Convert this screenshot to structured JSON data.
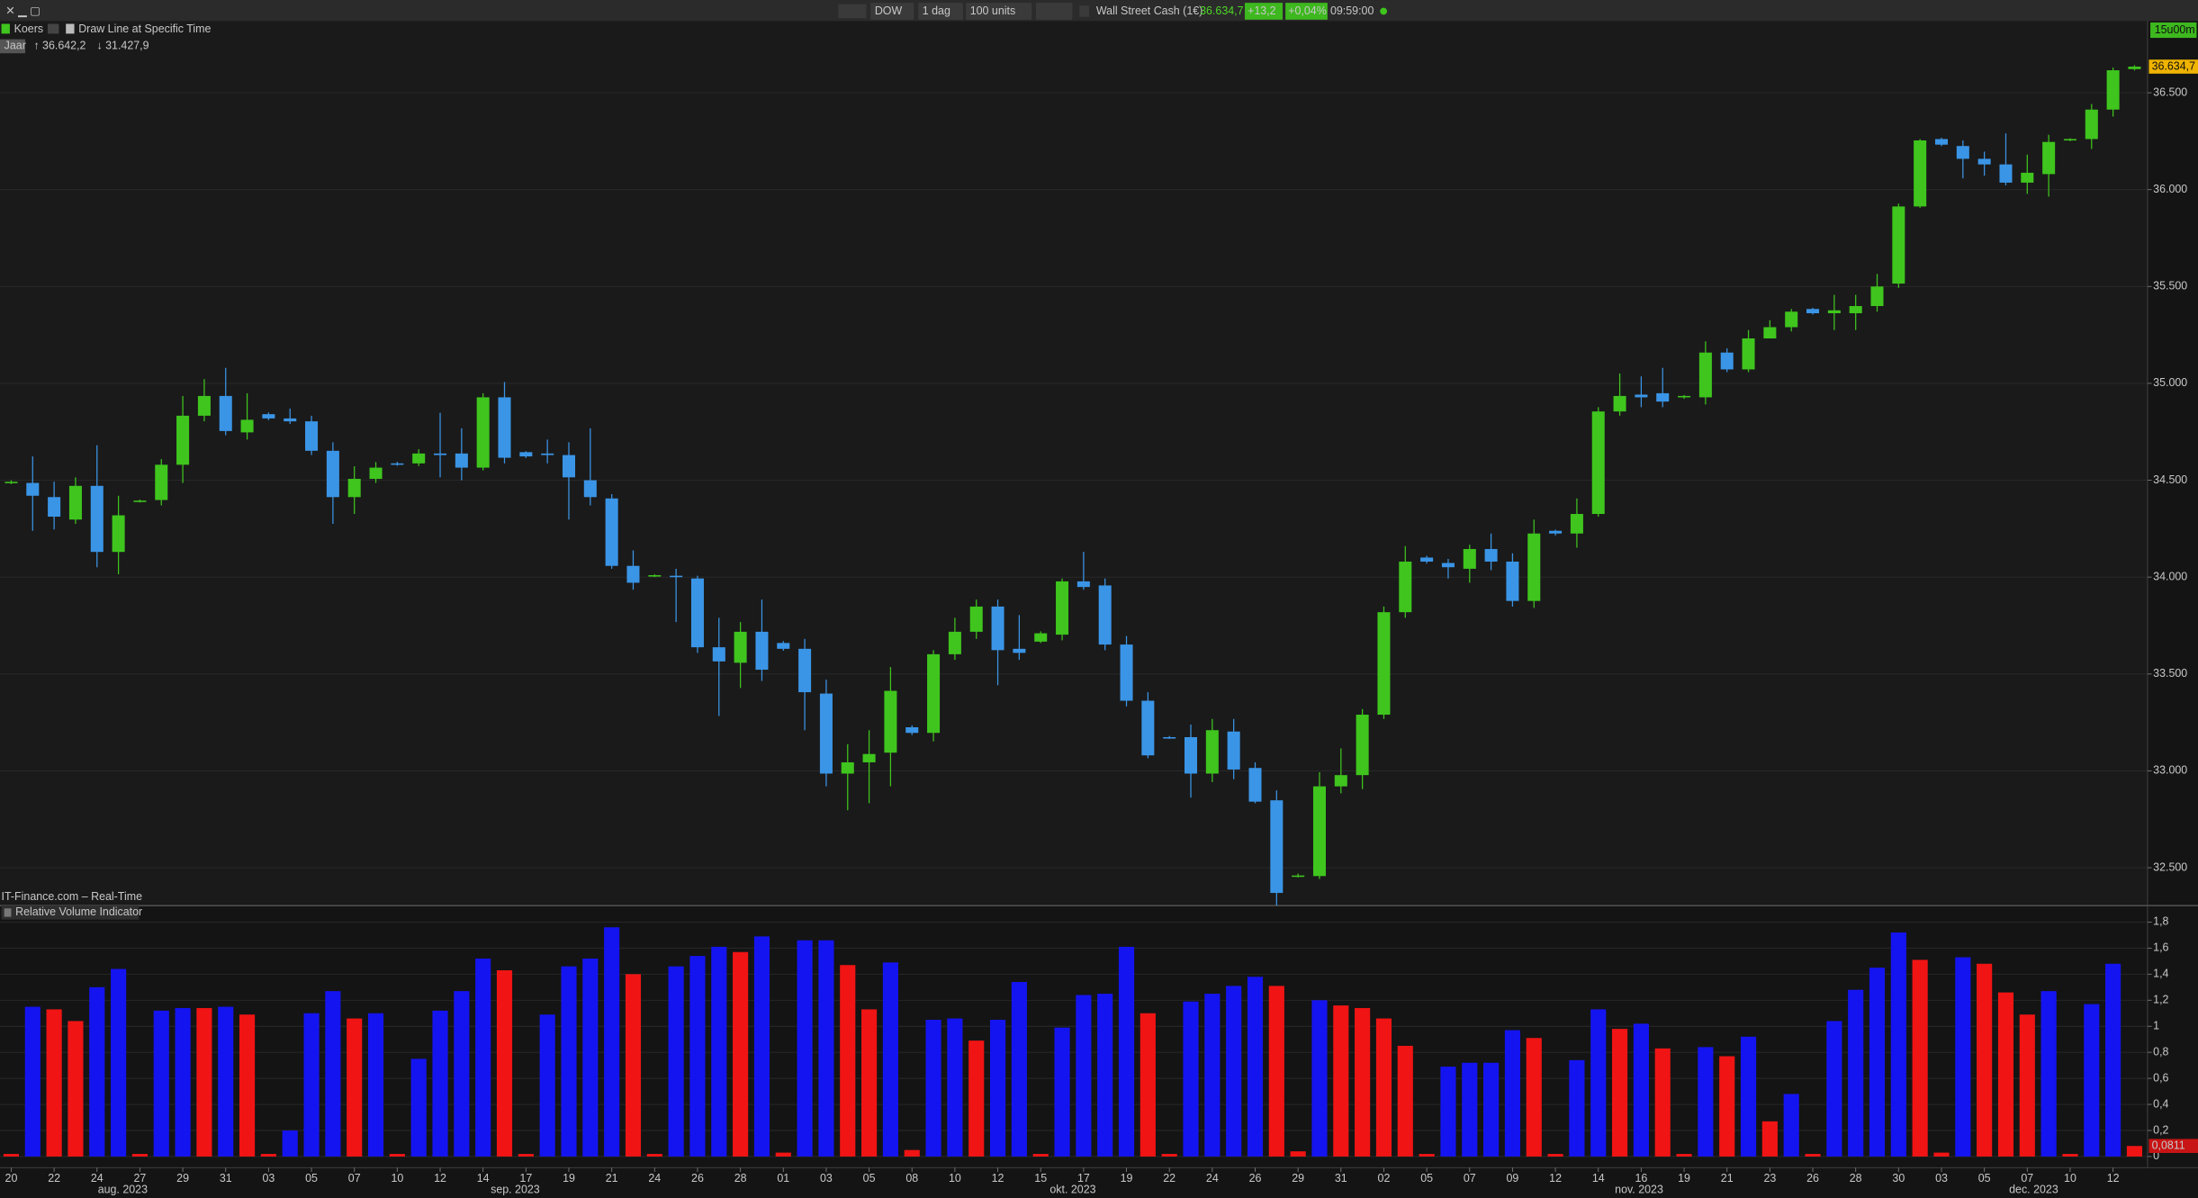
{
  "toolbar": {
    "symbol": "DOW",
    "period": "1 dag",
    "size": "100 units",
    "instrument": "Wall Street Cash (1€)",
    "price": "36.634,7",
    "change": "+13,2",
    "change_pct": "+0,04%",
    "time": "09:59:00",
    "timeframe": "15u00m"
  },
  "chart_data": [
    {
      "type": "candlestick",
      "legend": [
        "Koers",
        "Draw Line at Specific Time"
      ],
      "range_label": "Jaar",
      "high_label": "↑ 36.642,2",
      "low_label": "↓ 31.427,9",
      "source": "IT-Finance.com – Real-Time",
      "up_color": "#3fc51e",
      "down_color": "#3b95e6",
      "open": [
        34490,
        34486,
        34413,
        34297,
        34471,
        34130,
        34391,
        34398,
        34580,
        34833,
        34935,
        34747,
        34841,
        34819,
        34804,
        34652,
        34413,
        34507,
        34587,
        34587,
        34638,
        34638,
        34565,
        34928,
        34645,
        34638,
        34630,
        34500,
        34406,
        34058,
        34007,
        34007,
        33993,
        33638,
        33558,
        33718,
        33660,
        33630,
        33399,
        32986,
        33044,
        33094,
        33225,
        33196,
        33602,
        33718,
        33848,
        33630,
        33667,
        33703,
        33978,
        33957,
        33652,
        33362,
        33174,
        33174,
        32986,
        33203,
        33015,
        32848,
        32457,
        32457,
        32920,
        32978,
        33290,
        33819,
        34101,
        34073,
        34043,
        34145,
        34080,
        33877,
        34239,
        34225,
        34326,
        34855,
        34942,
        34949,
        34928,
        34928,
        35159,
        35072,
        35232,
        35290,
        35384,
        35362,
        35362,
        35399,
        35515,
        35913,
        36261,
        36225,
        36159,
        36130,
        36036,
        36080,
        36254,
        36261,
        36413,
        36622
      ],
      "high": [
        34500,
        34623,
        34493,
        34515,
        34681,
        34420,
        34400,
        34609,
        34935,
        35022,
        35080,
        34949,
        34850,
        34870,
        34833,
        34696,
        34572,
        34594,
        34595,
        34660,
        34848,
        34768,
        34949,
        35007,
        34650,
        34710,
        34696,
        34768,
        34428,
        34138,
        34015,
        34043,
        34007,
        33790,
        33768,
        33884,
        33670,
        33681,
        33471,
        33138,
        33210,
        33536,
        33235,
        33623,
        33790,
        33884,
        33884,
        33804,
        33720,
        33993,
        34131,
        33993,
        33696,
        33406,
        33180,
        33239,
        33268,
        33268,
        33044,
        32899,
        32470,
        32993,
        33116,
        33319,
        33848,
        34160,
        34110,
        34094,
        34167,
        34225,
        34123,
        34297,
        34245,
        34406,
        34877,
        35051,
        35036,
        35080,
        34940,
        35217,
        35181,
        35275,
        35326,
        35384,
        35390,
        35457,
        35457,
        35565,
        35928,
        36261,
        36268,
        36254,
        36196,
        36290,
        36181,
        36283,
        36265,
        36442,
        36630,
        36642.2
      ],
      "low": [
        34480,
        34239,
        34246,
        34275,
        34051,
        34015,
        34385,
        34370,
        34486,
        34804,
        34732,
        34710,
        34810,
        34790,
        34630,
        34275,
        34326,
        34486,
        34575,
        34573,
        34515,
        34500,
        34551,
        34587,
        34615,
        34587,
        34297,
        34370,
        34043,
        33935,
        34000,
        33768,
        33609,
        33283,
        33428,
        33464,
        33620,
        33210,
        32920,
        32797,
        32833,
        32920,
        33185,
        33152,
        33573,
        33681,
        33442,
        33573,
        33660,
        33674,
        33935,
        33623,
        33333,
        33065,
        33165,
        32862,
        32942,
        32957,
        32833,
        32305,
        32450,
        32442,
        32884,
        32906,
        33268,
        33790,
        34070,
        33993,
        33971,
        34036,
        33848,
        33841,
        34215,
        34152,
        34312,
        34833,
        34877,
        34877,
        34920,
        34891,
        35058,
        35058,
        35232,
        35268,
        35355,
        35275,
        35275,
        35370,
        35493,
        35906,
        36225,
        36058,
        36072,
        36022,
        35978,
        35964,
        36250,
        36210,
        36377,
        36615
      ],
      "close": [
        34492,
        34420,
        34312,
        34471,
        34130,
        34319,
        34395,
        34580,
        34833,
        34935,
        34754,
        34812,
        34819,
        34804,
        34652,
        34413,
        34507,
        34565,
        34580,
        34638,
        34630,
        34565,
        34928,
        34616,
        34623,
        34630,
        34515,
        34413,
        34058,
        33971,
        34010,
        34000,
        33638,
        33565,
        33718,
        33522,
        33630,
        33406,
        32986,
        33044,
        33087,
        33413,
        33196,
        33602,
        33718,
        33848,
        33623,
        33609,
        33710,
        33978,
        33949,
        33652,
        33362,
        33080,
        33170,
        32986,
        33210,
        33007,
        32841,
        32370,
        32460,
        32920,
        32978,
        33290,
        33819,
        34080,
        34080,
        34051,
        34145,
        34080,
        33877,
        34225,
        34225,
        34326,
        34855,
        34935,
        34928,
        34906,
        34935,
        35159,
        35072,
        35232,
        35290,
        35370,
        35362,
        35377,
        35399,
        35500,
        35913,
        36254,
        36232,
        36159,
        36130,
        36036,
        36087,
        36246,
        36261,
        36413,
        36616,
        36634.7
      ],
      "price_marker": {
        "value": 36634.7,
        "label": "36.634,7"
      },
      "ylim": [
        32312,
        36870
      ],
      "yticks": [
        {
          "value": 32500,
          "label": "32.500"
        },
        {
          "value": 33000,
          "label": "33.000"
        },
        {
          "value": 33500,
          "label": "33.500"
        },
        {
          "value": 34000,
          "label": "34.000"
        },
        {
          "value": 34500,
          "label": "34.500"
        },
        {
          "value": 35000,
          "label": "35.000"
        },
        {
          "value": 35500,
          "label": "35.500"
        },
        {
          "value": 36000,
          "label": "36.000"
        },
        {
          "value": 36500,
          "label": "36.500"
        }
      ],
      "grid": true
    },
    {
      "type": "bar",
      "title": "Relative Volume Indicator",
      "categories": [
        "20",
        null,
        "22",
        null,
        "24",
        null,
        "27",
        null,
        "29",
        null,
        "31",
        null,
        "03",
        null,
        "05",
        null,
        "07",
        null,
        "10",
        null,
        "12",
        null,
        "14",
        null,
        "17",
        null,
        "19",
        null,
        "21",
        null,
        "24",
        null,
        "26",
        null,
        "28",
        null,
        "01",
        null,
        "03",
        null,
        "05",
        null,
        "08",
        null,
        "10",
        null,
        "12",
        null,
        "15",
        null,
        "17",
        null,
        "19",
        null,
        "22",
        null,
        "24",
        null,
        "26",
        null,
        "29",
        null,
        "31",
        null,
        "02",
        null,
        "05",
        null,
        "07",
        null,
        "09",
        null,
        "12",
        null,
        "14",
        null,
        "16",
        null,
        "19",
        null,
        "21",
        null,
        "23",
        null,
        "26",
        null,
        "28",
        null,
        "30",
        null,
        "03",
        null,
        "05",
        null,
        "07",
        null,
        "10",
        null,
        "12",
        null
      ],
      "months": [
        "aug. 2023",
        "sep. 2023",
        "okt. 2023",
        "nov. 2023",
        "dec. 2023"
      ],
      "values": [
        0.02,
        1.15,
        1.13,
        1.04,
        1.3,
        1.44,
        0.02,
        1.12,
        1.14,
        1.14,
        1.15,
        1.09,
        0.02,
        0.2,
        1.1,
        1.27,
        1.06,
        1.1,
        0.02,
        0.75,
        1.12,
        1.27,
        1.52,
        1.43,
        0.02,
        1.09,
        1.46,
        1.52,
        1.76,
        1.4,
        0.02,
        1.46,
        1.54,
        1.61,
        1.57,
        1.69,
        0.03,
        1.66,
        1.66,
        1.47,
        1.13,
        1.49,
        0.05,
        1.05,
        1.06,
        0.89,
        1.05,
        1.34,
        0.02,
        0.99,
        1.24,
        1.25,
        1.61,
        1.1,
        0.02,
        1.19,
        1.25,
        1.31,
        1.38,
        1.31,
        0.04,
        1.2,
        1.16,
        1.14,
        1.06,
        0.85,
        0.02,
        0.69,
        0.72,
        0.72,
        0.97,
        0.91,
        0.02,
        0.74,
        1.13,
        0.98,
        1.02,
        0.83,
        0.02,
        0.84,
        0.77,
        0.92,
        0.27,
        0.48,
        0.02,
        1.04,
        1.28,
        1.45,
        1.72,
        1.51,
        0.03,
        1.53,
        1.48,
        1.26,
        1.09,
        1.27,
        0.02,
        1.17,
        1.48,
        0.0811
      ],
      "colors": [
        "#f01414",
        "#1414f0",
        "#f01414",
        "#f01414",
        "#1414f0",
        "#1414f0",
        "#f01414",
        "#1414f0",
        "#1414f0",
        "#f01414",
        "#1414f0",
        "#f01414",
        "#f01414",
        "#1414f0",
        "#1414f0",
        "#1414f0",
        "#f01414",
        "#1414f0",
        "#f01414",
        "#1414f0",
        "#1414f0",
        "#1414f0",
        "#1414f0",
        "#f01414",
        "#f01414",
        "#1414f0",
        "#1414f0",
        "#1414f0",
        "#1414f0",
        "#f01414",
        "#f01414",
        "#1414f0",
        "#1414f0",
        "#1414f0",
        "#f01414",
        "#1414f0",
        "#f01414",
        "#1414f0",
        "#1414f0",
        "#f01414",
        "#f01414",
        "#1414f0",
        "#f01414",
        "#1414f0",
        "#1414f0",
        "#f01414",
        "#1414f0",
        "#1414f0",
        "#f01414",
        "#1414f0",
        "#1414f0",
        "#1414f0",
        "#1414f0",
        "#f01414",
        "#f01414",
        "#1414f0",
        "#1414f0",
        "#1414f0",
        "#1414f0",
        "#f01414",
        "#f01414",
        "#1414f0",
        "#f01414",
        "#f01414",
        "#f01414",
        "#f01414",
        "#f01414",
        "#1414f0",
        "#1414f0",
        "#1414f0",
        "#1414f0",
        "#f01414",
        "#f01414",
        "#1414f0",
        "#1414f0",
        "#f01414",
        "#1414f0",
        "#f01414",
        "#f01414",
        "#1414f0",
        "#f01414",
        "#1414f0",
        "#f01414",
        "#1414f0",
        "#f01414",
        "#1414f0",
        "#1414f0",
        "#1414f0",
        "#1414f0",
        "#f01414",
        "#f01414",
        "#1414f0",
        "#f01414",
        "#f01414",
        "#f01414",
        "#1414f0",
        "#f01414",
        "#1414f0",
        "#1414f0",
        "#f01414"
      ],
      "value_marker": {
        "value": 0.0811,
        "label": "0,0811"
      },
      "ylim": [
        -0.075,
        1.83
      ],
      "yticks": [
        0,
        {
          "value": 0.2,
          "label": "0,2"
        },
        {
          "value": 0.4,
          "label": "0,4"
        },
        {
          "value": 0.6,
          "label": "0,6"
        },
        {
          "value": 0.8,
          "label": "0,8"
        },
        1,
        {
          "value": 1.2,
          "label": "1,2"
        },
        {
          "value": 1.4,
          "label": "1,4"
        },
        {
          "value": 1.6,
          "label": "1,6"
        },
        {
          "value": 1.8,
          "label": "1,8"
        }
      ],
      "grid": true
    }
  ]
}
